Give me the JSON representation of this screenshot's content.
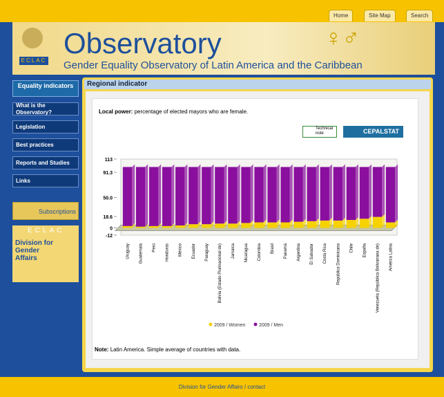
{
  "header": {
    "tabs": [
      "Home",
      "Site Map",
      "Search"
    ],
    "logo": "ECLAC",
    "title": "Observatory",
    "subtitle": "Gender Equality Observatory of Latin America and the Caribbean"
  },
  "nav": {
    "heading": "Equality indicators",
    "items": [
      "What is the Observatory?",
      "Legislation",
      "Best practices",
      "Reports and Studies",
      "Links"
    ],
    "subscriptions": "Subscriptions",
    "eclac": "ECLAC",
    "division": "Division for Gender Affairs"
  },
  "panel": {
    "title": "Regional indicator",
    "indicator_label": "Local power:",
    "indicator_text": "percentage of elected mayors who are female.",
    "buttons": [
      "Technical note",
      "CEPALSTAT"
    ],
    "note_label": "Note:",
    "note_text": "Latin America. Simple average of countries with data."
  },
  "chart_data": {
    "type": "bar",
    "stacked": true,
    "categories": [
      "Uruguay",
      "Guatemala",
      "Perú",
      "Honduras",
      "México",
      "Ecuador",
      "Paraguay",
      "Bolivia (Estado Plurinacional de)",
      "Jamaica",
      "Nicaragua",
      "Colombia",
      "Brasil",
      "Panamá",
      "Argentina",
      "El Salvador",
      "Costa Rica",
      "República Dominicana",
      "Chile",
      "España",
      "Venezuela (República Bolivariana de)",
      "América Latina"
    ],
    "series": [
      {
        "name": "2009 / Women",
        "color": "#f5d200",
        "values": [
          3,
          2,
          3,
          3,
          4,
          6,
          6,
          7,
          7,
          8,
          9,
          9,
          9,
          10,
          11,
          12,
          12,
          13,
          15,
          18,
          9
        ]
      },
      {
        "name": "2009 / Men",
        "color": "#8a0f9e",
        "values": [
          97,
          98,
          97,
          97,
          96,
          94,
          94,
          93,
          93,
          92,
          91,
          91,
          91,
          90,
          89,
          88,
          88,
          87,
          85,
          82,
          91
        ]
      }
    ],
    "ylim": [
      -12,
      113
    ],
    "yticks": [
      -12,
      0,
      18.6,
      {
        "value": 50,
        "label": "50.0"
      },
      91.3,
      113
    ]
  },
  "footer": "Division for Gender Affairs / contact"
}
